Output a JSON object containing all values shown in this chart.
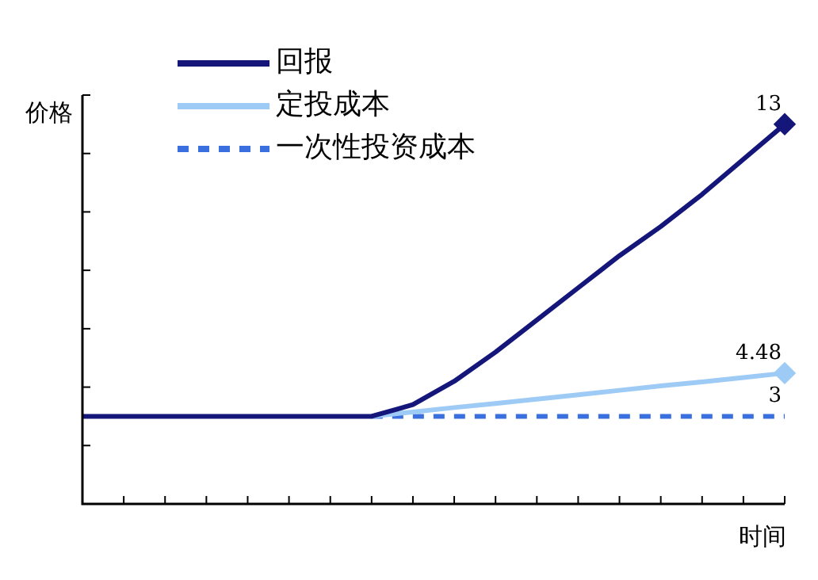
{
  "chart_data": {
    "type": "line",
    "ylabel": "价格",
    "xlabel": "时间",
    "categories": [
      null,
      null,
      null,
      null,
      null,
      null,
      null,
      null,
      null,
      null,
      null,
      null,
      null,
      null,
      null,
      null,
      null,
      null
    ],
    "ylim": [
      0,
      14
    ],
    "yticks": [
      {
        "value": 0,
        "label": null
      },
      {
        "value": 2,
        "label": null
      },
      {
        "value": 4,
        "label": null
      },
      {
        "value": 6,
        "label": null
      },
      {
        "value": 8,
        "label": null
      },
      {
        "value": 10,
        "label": null
      },
      {
        "value": 12,
        "label": null
      },
      {
        "value": 14,
        "label": null
      }
    ],
    "grid": false,
    "legend": "top left",
    "series": [
      {
        "name": "回报",
        "color": "#14167a",
        "line_style": "solid",
        "values": [
          3,
          3,
          3,
          3,
          3,
          3,
          3,
          3,
          3.4,
          4.2,
          5.2,
          6.3,
          7.4,
          8.5,
          9.5,
          10.6,
          11.8,
          13
        ],
        "value_labels": [
          null,
          null,
          null,
          null,
          null,
          null,
          null,
          null,
          null,
          null,
          null,
          null,
          null,
          null,
          null,
          null,
          null,
          "13"
        ]
      },
      {
        "name": "定投成本",
        "color": "#9ecbf5",
        "line_style": "solid",
        "values": [
          null,
          null,
          null,
          null,
          null,
          null,
          null,
          3,
          3.15,
          3.3,
          3.44,
          3.59,
          3.74,
          3.89,
          4.04,
          4.18,
          4.33,
          4.48
        ],
        "value_labels": [
          null,
          null,
          null,
          null,
          null,
          null,
          null,
          null,
          null,
          null,
          null,
          null,
          null,
          null,
          null,
          null,
          null,
          "4.48"
        ]
      },
      {
        "name": "一次性投资成本",
        "color": "#3a6fe0",
        "line_style": "dashed",
        "marker": "none",
        "values": [
          null,
          null,
          null,
          null,
          null,
          null,
          null,
          3,
          3,
          3,
          3,
          3,
          3,
          3,
          3,
          3,
          3,
          3
        ],
        "value_labels": [
          null,
          null,
          null,
          null,
          null,
          null,
          null,
          null,
          null,
          null,
          null,
          null,
          null,
          null,
          null,
          null,
          null,
          "3"
        ]
      }
    ]
  }
}
